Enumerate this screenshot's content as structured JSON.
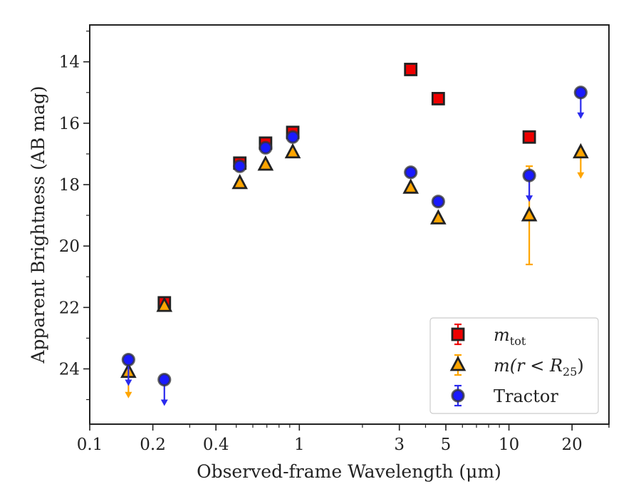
{
  "chart_data": {
    "type": "scatter",
    "title": "",
    "xlabel": "Observed-frame Wavelength (μm)",
    "ylabel": "Apparent Brightness (AB mag)",
    "xscale": "log",
    "xlim": [
      0.1,
      30
    ],
    "ylim": [
      25.8,
      12.8
    ],
    "y_inverted": true,
    "grid": false,
    "legend_position": "lower right",
    "x_ticks": [
      {
        "value": 0.1,
        "label": "0.1"
      },
      {
        "value": 0.2,
        "label": "0.2"
      },
      {
        "value": 0.4,
        "label": "0.4"
      },
      {
        "value": 1,
        "label": "1"
      },
      {
        "value": 3,
        "label": "3"
      },
      {
        "value": 5,
        "label": "5"
      },
      {
        "value": 10,
        "label": "10"
      },
      {
        "value": 20,
        "label": "20"
      }
    ],
    "y_ticks": [
      {
        "value": 14,
        "label": "14"
      },
      {
        "value": 16,
        "label": "16"
      },
      {
        "value": 18,
        "label": "18"
      },
      {
        "value": 20,
        "label": "20"
      },
      {
        "value": 22,
        "label": "22"
      },
      {
        "value": 24,
        "label": "24"
      }
    ],
    "series": [
      {
        "name": "m_tot",
        "legend_label": "m",
        "legend_sub": "tot",
        "marker": "square",
        "fill": "#ee0000",
        "error_color": "#ee0000",
        "points": [
          {
            "x": 0.227,
            "y": 21.85
          },
          {
            "x": 0.52,
            "y": 17.3
          },
          {
            "x": 0.69,
            "y": 16.65
          },
          {
            "x": 0.93,
            "y": 16.3
          },
          {
            "x": 3.4,
            "y": 14.25
          },
          {
            "x": 4.6,
            "y": 15.2
          },
          {
            "x": 12.5,
            "y": 16.45
          }
        ]
      },
      {
        "name": "m(r < R25)",
        "legend_label": "m(r < R",
        "legend_sub": "25",
        "legend_suffix": ")",
        "marker": "triangle",
        "fill": "#ffa500",
        "error_color": "#ffa500",
        "points": [
          {
            "x": 0.153,
            "y": 24.1,
            "upper_limit": true
          },
          {
            "x": 0.227,
            "y": 21.95
          },
          {
            "x": 0.52,
            "y": 17.95
          },
          {
            "x": 0.69,
            "y": 17.35
          },
          {
            "x": 0.93,
            "y": 16.95
          },
          {
            "x": 3.4,
            "y": 18.1
          },
          {
            "x": 4.6,
            "y": 19.1
          },
          {
            "x": 12.5,
            "y": 19.0,
            "err_low": 17.4,
            "err_high": 20.6
          },
          {
            "x": 22.0,
            "y": 16.95,
            "upper_limit": true
          }
        ]
      },
      {
        "name": "Tractor",
        "legend_label": "Tractor",
        "marker": "circle",
        "fill": "#1a1aff",
        "error_color": "#2a2aee",
        "points": [
          {
            "x": 0.153,
            "y": 23.7,
            "upper_limit": true
          },
          {
            "x": 0.227,
            "y": 24.35,
            "upper_limit": true
          },
          {
            "x": 0.52,
            "y": 17.4
          },
          {
            "x": 0.69,
            "y": 16.8
          },
          {
            "x": 0.93,
            "y": 16.45
          },
          {
            "x": 3.4,
            "y": 17.6
          },
          {
            "x": 4.6,
            "y": 18.55
          },
          {
            "x": 12.5,
            "y": 17.7,
            "upper_limit": true
          },
          {
            "x": 22.0,
            "y": 15.0,
            "upper_limit": true
          }
        ]
      }
    ]
  }
}
